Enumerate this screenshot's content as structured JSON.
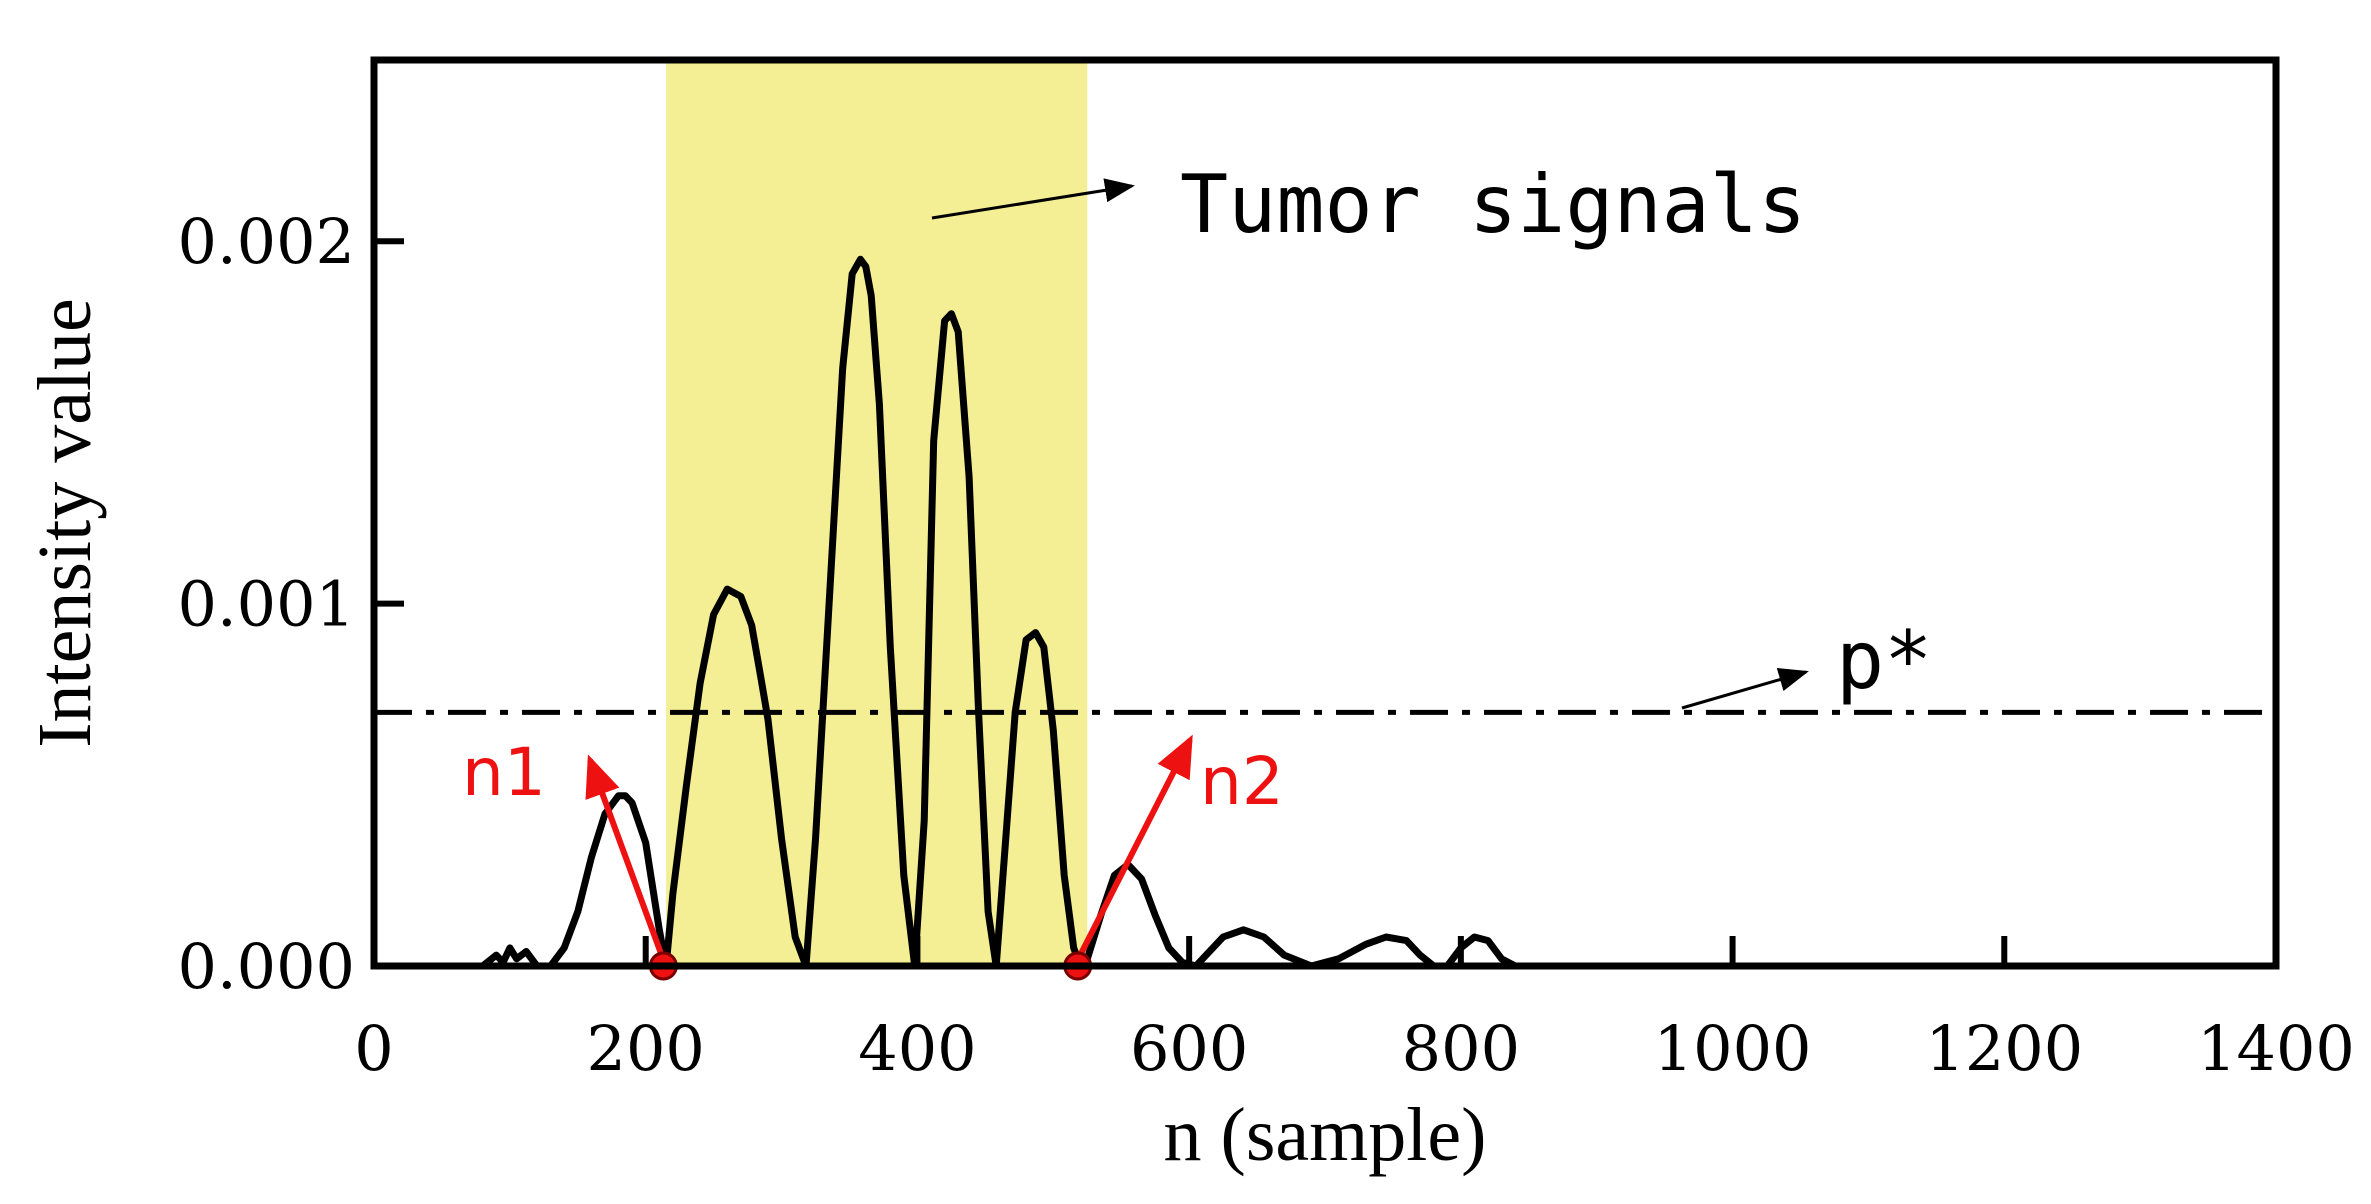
{
  "chart_data": {
    "type": "line",
    "xlabel": "n (sample)",
    "ylabel": "Intensity value",
    "xlim": [
      0,
      1400
    ],
    "ylim": [
      0,
      0.0025
    ],
    "x_ticks": [
      0,
      200,
      400,
      600,
      800,
      1000,
      1200,
      1400
    ],
    "y_ticks": [
      0.0,
      0.001,
      0.002
    ],
    "x_tick_labels": [
      "0",
      "200",
      "400",
      "600",
      "800",
      "1000",
      "1200",
      "1400"
    ],
    "y_tick_labels": [
      "0.000",
      "0.001",
      "0.002"
    ],
    "grid": false,
    "highlight_region": {
      "x_start": 215,
      "x_end": 525,
      "color": "#f4ee94"
    },
    "threshold": {
      "name": "p*",
      "y": 0.0007
    },
    "series": [
      {
        "name": "intensity",
        "color": "#000000",
        "x": [
          80,
          90,
          95,
          100,
          105,
          112,
          120,
          130,
          140,
          150,
          160,
          170,
          180,
          185,
          190,
          200,
          210,
          215,
          220,
          230,
          240,
          250,
          260,
          270,
          278,
          285,
          290,
          300,
          310,
          318,
          325,
          335,
          345,
          352,
          358,
          362,
          366,
          372,
          380,
          390,
          398,
          405,
          412,
          420,
          425,
          430,
          438,
          445,
          452,
          458,
          465,
          472,
          480,
          487,
          493,
          500,
          508,
          515,
          520,
          525,
          535,
          545,
          555,
          565,
          575,
          585,
          595,
          605,
          615,
          625,
          640,
          655,
          670,
          690,
          710,
          730,
          745,
          760,
          770,
          780,
          790,
          800,
          810,
          820,
          830,
          840
        ],
        "y": [
          0.0,
          3e-05,
          1e-05,
          5e-05,
          2e-05,
          4e-05,
          0.0,
          0.0,
          5e-05,
          0.00015,
          0.0003,
          0.00042,
          0.00047,
          0.00047,
          0.00045,
          0.00034,
          0.0001,
          0.0,
          0.0002,
          0.0005,
          0.00078,
          0.00097,
          0.00104,
          0.00102,
          0.00094,
          0.00079,
          0.00068,
          0.00035,
          8e-05,
          0.0,
          0.00035,
          0.001,
          0.00165,
          0.00191,
          0.00195,
          0.00193,
          0.00185,
          0.00155,
          0.00088,
          0.00025,
          0.0,
          0.0004,
          0.00145,
          0.00178,
          0.0018,
          0.00175,
          0.00135,
          0.0007,
          0.00015,
          0.0,
          0.00035,
          0.0007,
          0.0009,
          0.00092,
          0.00088,
          0.00065,
          0.00025,
          5e-05,
          0.0,
          2e-05,
          0.00014,
          0.00025,
          0.00028,
          0.00024,
          0.00014,
          5e-05,
          1e-05,
          0.0,
          4e-05,
          8e-05,
          0.0001,
          8e-05,
          3e-05,
          0.0,
          2e-05,
          6e-05,
          8e-05,
          7e-05,
          3e-05,
          0.0,
          0.0,
          5e-05,
          8e-05,
          7e-05,
          2e-05,
          0.0
        ]
      }
    ],
    "markers": [
      {
        "name": "n1",
        "x": 213,
        "y": 0.0
      },
      {
        "name": "n2",
        "x": 518,
        "y": 0.0
      }
    ],
    "annotations": [
      {
        "text": "Tumor signals"
      },
      {
        "text": "p*"
      }
    ]
  },
  "colors": {
    "curve": "#000000",
    "highlight": "#f4ee94",
    "marker": "#ee1111"
  }
}
